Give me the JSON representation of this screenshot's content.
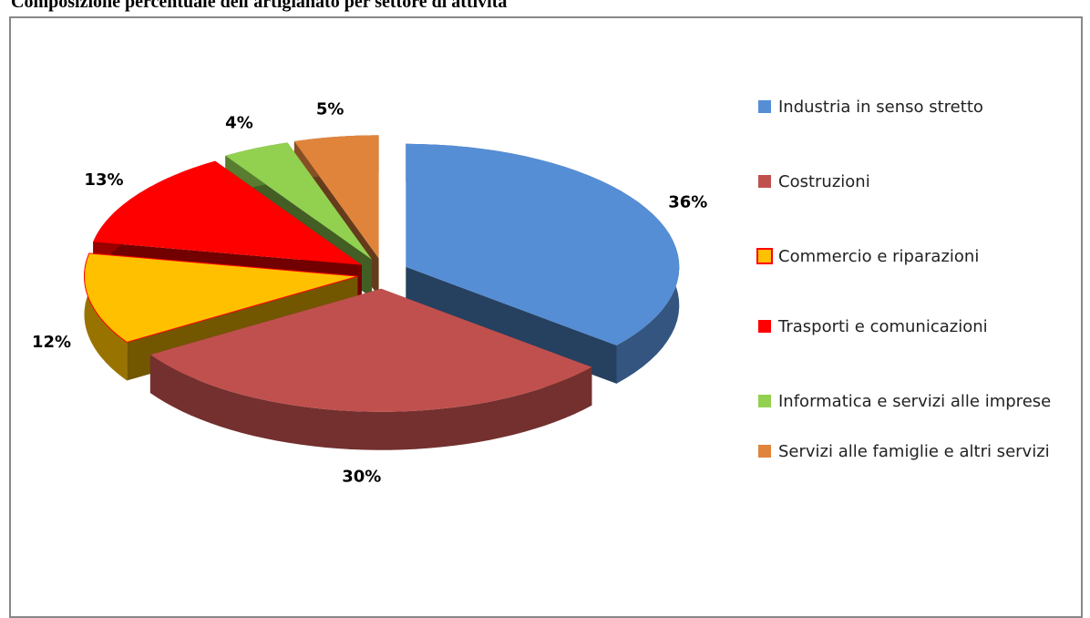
{
  "chart_data": {
    "type": "pie",
    "title": "Composizione percentuale dell'artigianato per settore di attività",
    "categories": [
      "Industria in senso stretto",
      "Costruzioni",
      "Commercio e riparazioni",
      "Trasporti e comunicazioni",
      "Informatica e servizi alle imprese",
      "Servizi alle famiglie e altri servizi"
    ],
    "values": [
      36,
      30,
      12,
      13,
      4,
      5
    ],
    "value_labels": [
      "36%",
      "30%",
      "12%",
      "13%",
      "4%",
      "5%"
    ],
    "colors": [
      "#558ed5",
      "#c0504d",
      "#ffc000",
      "#ff0000",
      "#92d050",
      "#e0843c"
    ]
  }
}
